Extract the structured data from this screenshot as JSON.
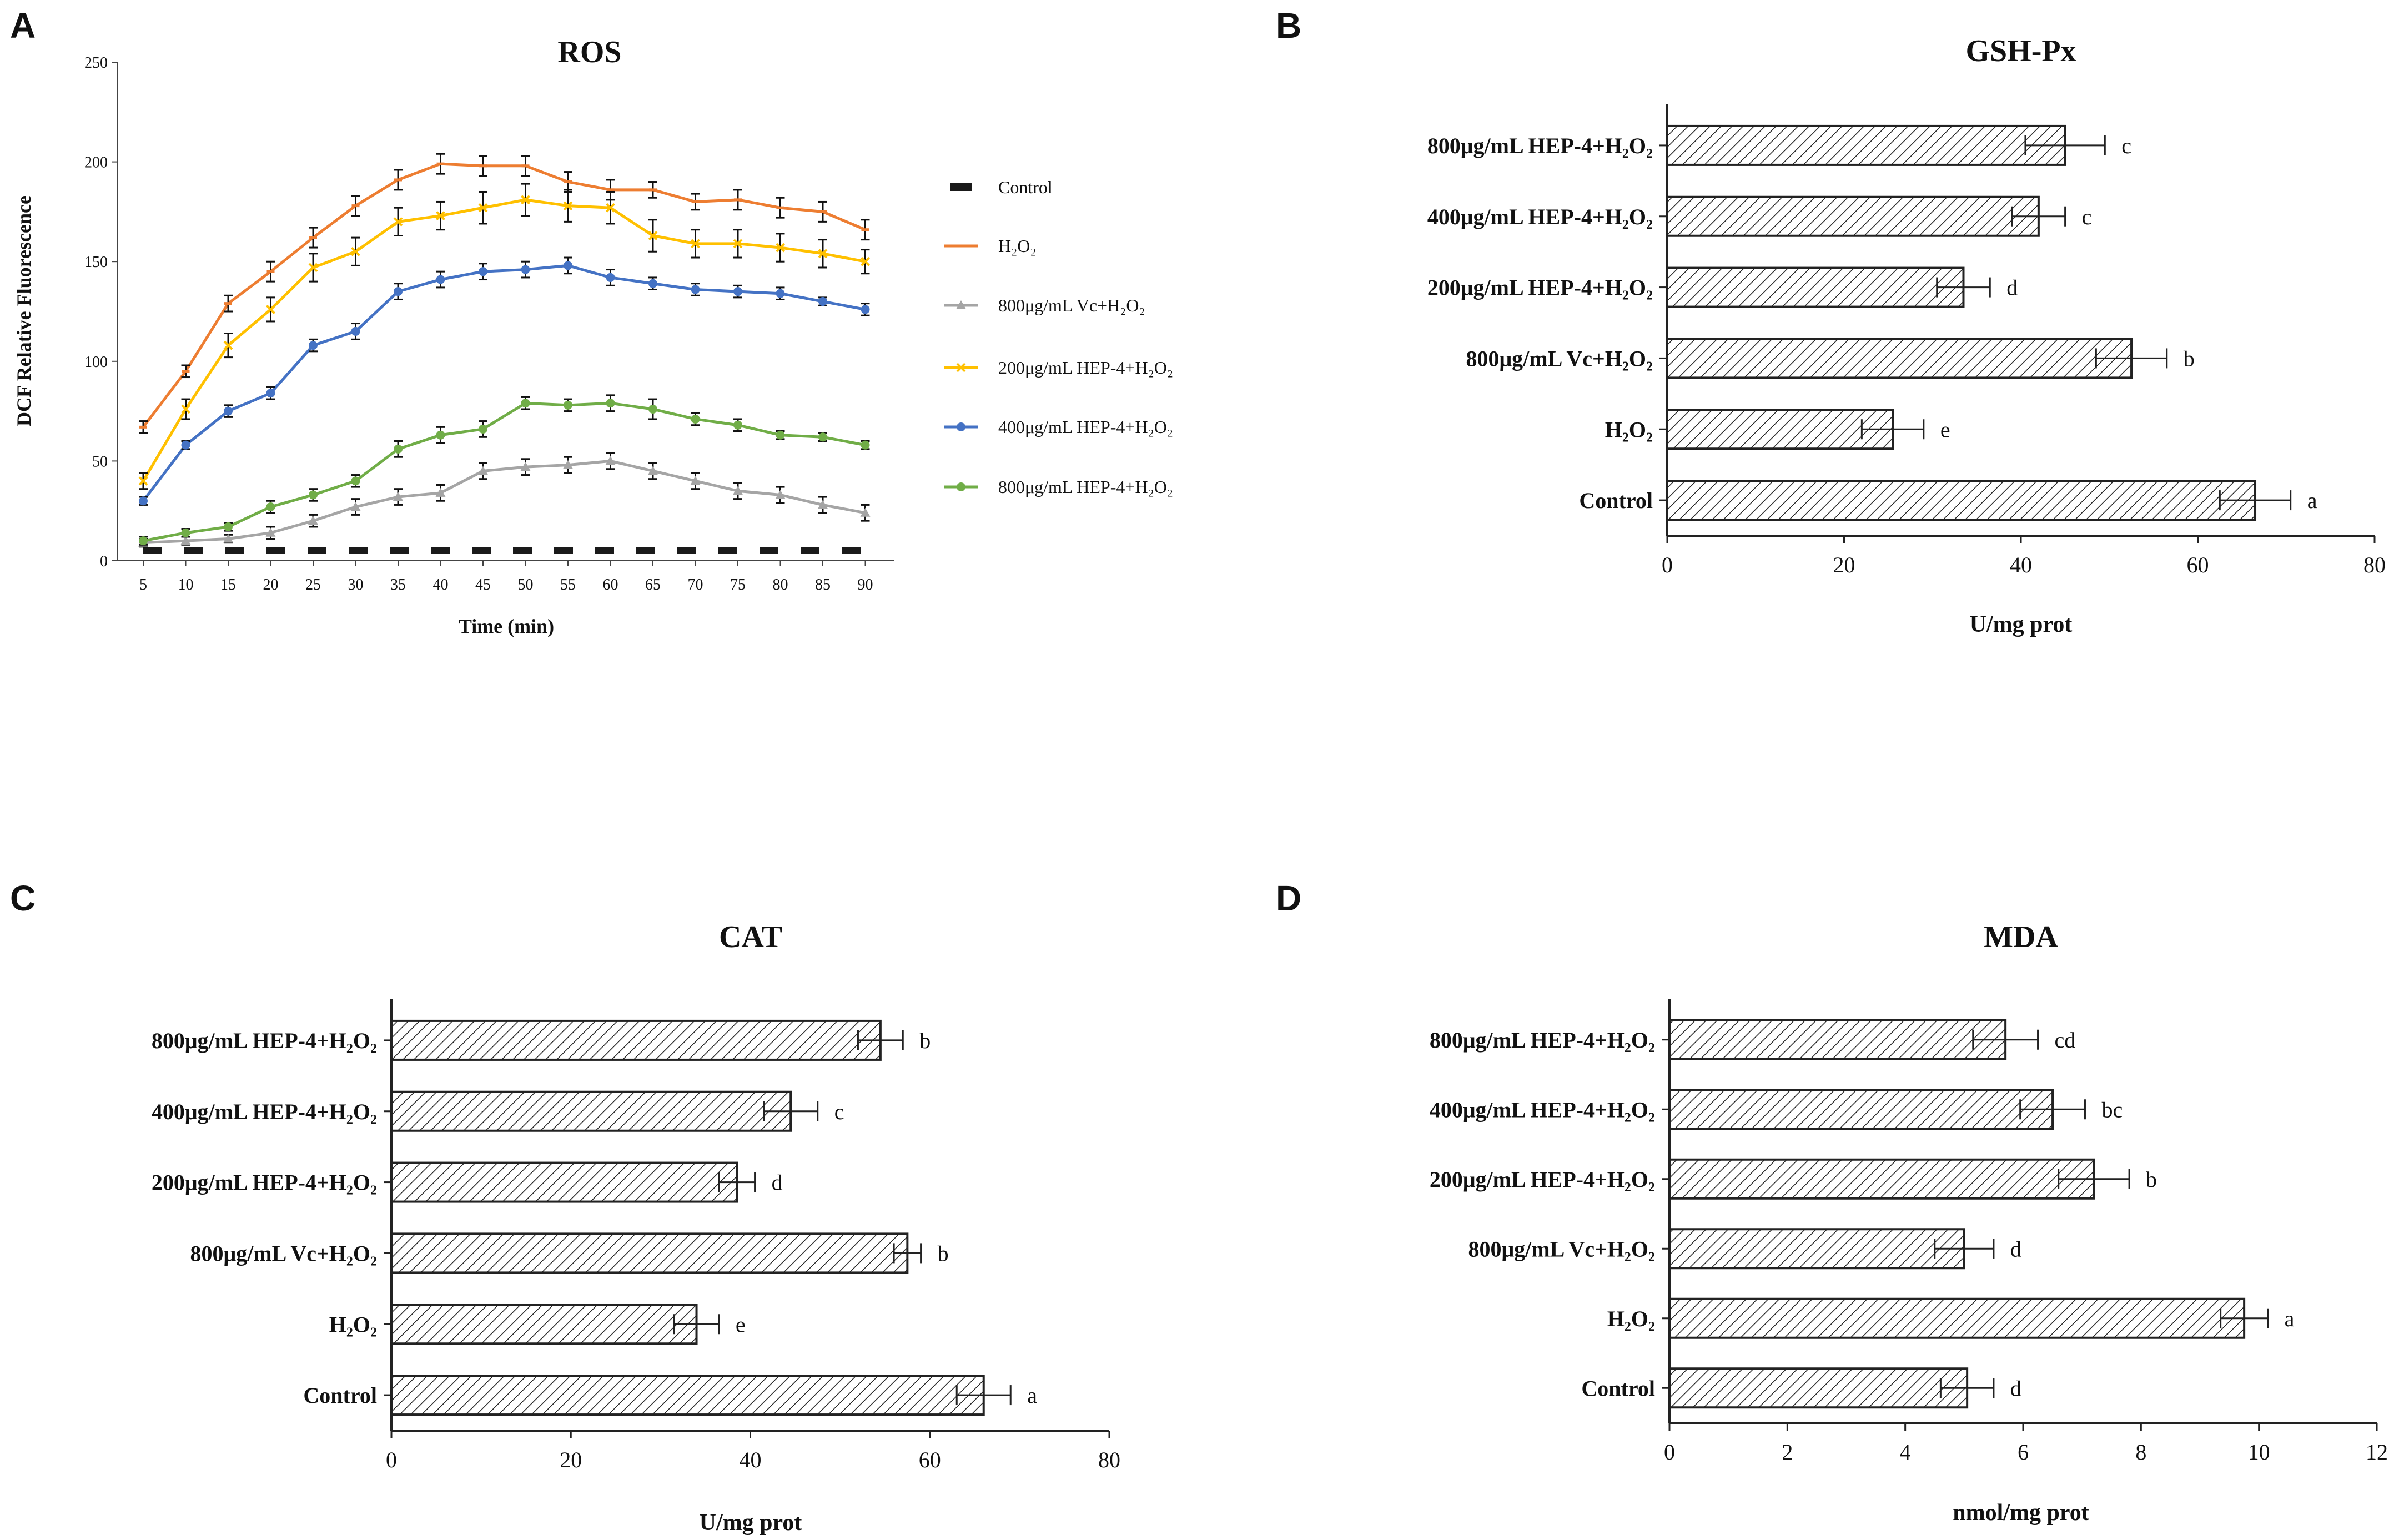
{
  "chart_data": [
    {
      "panel": "A",
      "type": "line",
      "title": "ROS",
      "xlabel": "Time (min)",
      "ylabel": "DCF  Relative  Fluorescence",
      "x": [
        5,
        10,
        15,
        20,
        25,
        30,
        35,
        40,
        45,
        50,
        55,
        60,
        65,
        70,
        75,
        80,
        85,
        90
      ],
      "yticks": [
        "0",
        "50",
        "100",
        "150",
        "200",
        "250"
      ],
      "ylim": [
        0,
        250
      ],
      "series": [
        {
          "name": "Control",
          "color": "#1a1a1a",
          "style": "dash",
          "marker": "none",
          "values": [
            5,
            5,
            5,
            5,
            5,
            5,
            5,
            5,
            5,
            5,
            5,
            5,
            5,
            5,
            5,
            5,
            5,
            5
          ],
          "errors": [
            0,
            0,
            0,
            0,
            0,
            0,
            0,
            0,
            0,
            0,
            0,
            0,
            0,
            0,
            0,
            0,
            0,
            0
          ]
        },
        {
          "name": "H₂O₂",
          "color": "#ed7d31",
          "style": "solid",
          "marker": "dash",
          "values": [
            67,
            95,
            129,
            145,
            162,
            178,
            191,
            199,
            198,
            198,
            190,
            186,
            186,
            180,
            181,
            177,
            175,
            166
          ],
          "errors": [
            3,
            3,
            4,
            5,
            5,
            5,
            5,
            5,
            5,
            5,
            5,
            5,
            4,
            4,
            5,
            5,
            5,
            5
          ]
        },
        {
          "name": "800μg/mL Vc+H₂O₂",
          "color": "#a5a5a5",
          "style": "solid",
          "marker": "triangle",
          "values": [
            9,
            10,
            11,
            14,
            20,
            27,
            32,
            34,
            45,
            47,
            48,
            50,
            45,
            40,
            35,
            33,
            28,
            24
          ],
          "errors": [
            2,
            2,
            2,
            3,
            3,
            4,
            4,
            4,
            4,
            4,
            4,
            4,
            4,
            4,
            4,
            4,
            4,
            4
          ]
        },
        {
          "name": "200μg/mL HEP-4+H₂O₂",
          "color": "#ffc000",
          "style": "solid",
          "marker": "x",
          "values": [
            40,
            76,
            108,
            126,
            147,
            155,
            170,
            173,
            177,
            181,
            178,
            177,
            163,
            159,
            159,
            157,
            154,
            150
          ],
          "errors": [
            4,
            5,
            6,
            6,
            7,
            7,
            7,
            7,
            8,
            8,
            8,
            8,
            8,
            7,
            7,
            7,
            7,
            6
          ]
        },
        {
          "name": "400μg/mL HEP-4+H₂O₂",
          "color": "#4472c4",
          "style": "solid",
          "marker": "circle",
          "values": [
            30,
            58,
            75,
            84,
            108,
            115,
            135,
            141,
            145,
            146,
            148,
            142,
            139,
            136,
            135,
            134,
            130,
            126
          ],
          "errors": [
            2,
            2,
            3,
            3,
            3,
            4,
            4,
            4,
            4,
            4,
            4,
            4,
            3,
            3,
            3,
            3,
            2,
            3
          ]
        },
        {
          "name": "800μg/mL HEP-4+H₂O₂",
          "color": "#70ad47",
          "style": "solid",
          "marker": "circle",
          "values": [
            10,
            14,
            17,
            27,
            33,
            40,
            56,
            63,
            66,
            79,
            78,
            79,
            76,
            71,
            68,
            63,
            62,
            58
          ],
          "errors": [
            2,
            2,
            2,
            3,
            3,
            3,
            4,
            4,
            4,
            3,
            3,
            4,
            5,
            3,
            3,
            2,
            2,
            2
          ]
        }
      ]
    },
    {
      "panel": "B",
      "type": "bar",
      "orientation": "horizontal",
      "title": "GSH-Px",
      "xlabel": "U/mg prot",
      "categories": [
        "800μg/mL HEP-4+H₂O₂",
        "400μg/mL HEP-4+H₂O₂",
        "200μg/mL HEP-4+H₂O₂",
        "800μg/mL Vc+H₂O₂",
        "H₂O₂",
        "Control"
      ],
      "values": [
        45,
        42,
        33.5,
        52.5,
        25.5,
        66.5
      ],
      "errors": [
        4.5,
        3,
        3,
        4,
        3.5,
        4
      ],
      "significance": [
        "c",
        "c",
        "d",
        "b",
        "e",
        "a"
      ],
      "xticks": [
        "0",
        "20",
        "40",
        "60",
        "80"
      ],
      "xlim": [
        0,
        80
      ]
    },
    {
      "panel": "C",
      "type": "bar",
      "orientation": "horizontal",
      "title": "CAT",
      "xlabel": "U/mg prot",
      "categories": [
        "800μg/mL HEP-4+H₂O₂",
        "400μg/mL HEP-4+H₂O₂",
        "200μg/mL HEP-4+H₂O₂",
        "800μg/mL Vc+H₂O₂",
        "H₂O₂",
        "Control"
      ],
      "values": [
        54.5,
        44.5,
        38.5,
        57.5,
        34,
        66
      ],
      "errors": [
        2.5,
        3,
        2,
        1.5,
        2.5,
        3
      ],
      "significance": [
        "b",
        "c",
        "d",
        "b",
        "e",
        "a"
      ],
      "xticks": [
        "0",
        "20",
        "40",
        "60",
        "80"
      ],
      "xlim": [
        0,
        80
      ]
    },
    {
      "panel": "D",
      "type": "bar",
      "orientation": "horizontal",
      "title": "MDA",
      "xlabel": "nmol/mg prot",
      "categories": [
        "800μg/mL HEP-4+H₂O₂",
        "400μg/mL HEP-4+H₂O₂",
        "200μg/mL HEP-4+H₂O₂",
        "800μg/mL Vc+H₂O₂",
        "H₂O₂",
        "Control"
      ],
      "values": [
        5.7,
        6.5,
        7.2,
        5,
        9.75,
        5.05
      ],
      "errors": [
        0.55,
        0.55,
        0.6,
        0.5,
        0.4,
        0.45
      ],
      "significance": [
        "cd",
        "bc",
        "b",
        "d",
        "a",
        "d"
      ],
      "xticks": [
        "0",
        "2",
        "4",
        "6",
        "8",
        "10",
        "12"
      ],
      "xlim": [
        0,
        12
      ]
    }
  ],
  "panel_labels": [
    "A",
    "B",
    "C",
    "D"
  ]
}
